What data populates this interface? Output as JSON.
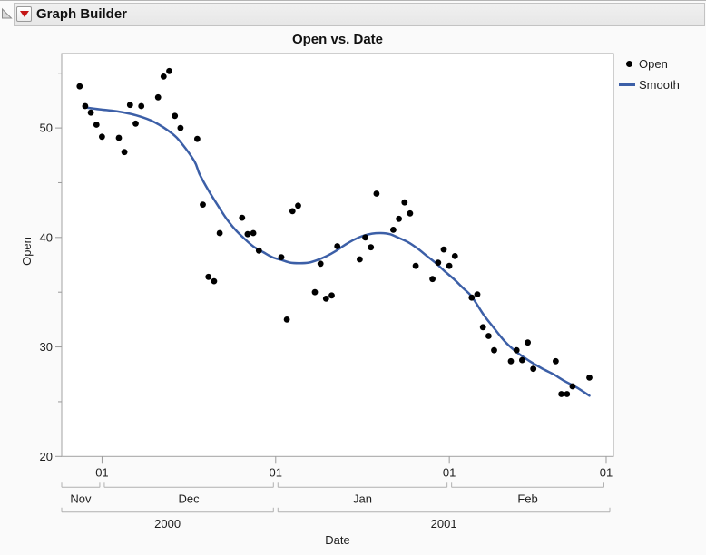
{
  "window": {
    "title": "Graph Builder"
  },
  "colors": {
    "smooth_line": "#3c5fa7",
    "point": "#000000",
    "red_triangle": "#c41414",
    "axis_gray": "#9a9a9a",
    "bracket_gray": "#b0b0b0",
    "frame_gray": "#a3a3a3"
  },
  "chart": {
    "title": "Open vs. Date",
    "x_axis": {
      "label": "Date",
      "type": "date",
      "min": "2000-11-24",
      "max": "2001-03-02",
      "day_ticks": [
        {
          "label": "01",
          "date": "2000-12-01"
        },
        {
          "label": "01",
          "date": "2001-01-01"
        },
        {
          "label": "01",
          "date": "2001-02-01"
        },
        {
          "label": "01",
          "date": "2001-03-01"
        }
      ],
      "month_spans": [
        {
          "label": "Nov",
          "start": "2000-11-24",
          "end": "2000-12-01"
        },
        {
          "label": "Dec",
          "start": "2000-12-01",
          "end": "2001-01-01"
        },
        {
          "label": "Jan",
          "start": "2001-01-01",
          "end": "2001-02-01"
        },
        {
          "label": "Feb",
          "start": "2001-02-01",
          "end": "2001-03-01"
        }
      ],
      "year_spans": [
        {
          "label": "2000",
          "start": "2000-11-24",
          "end": "2001-01-01"
        },
        {
          "label": "2001",
          "start": "2001-01-01",
          "end": "2001-03-02"
        }
      ]
    },
    "y_axis": {
      "label": "Open",
      "min": 20,
      "max": 56.8,
      "tick_values": [
        50,
        40,
        30,
        20
      ],
      "minor_tick_values": [
        55,
        45,
        35,
        25
      ]
    },
    "legend": [
      {
        "label": "Open",
        "marker": "dot",
        "color": "#000000"
      },
      {
        "label": "Smooth",
        "marker": "line",
        "color": "#3c5fa7"
      }
    ]
  },
  "chart_data": {
    "type": "scatter",
    "title": "Open vs. Date",
    "xlabel": "Date",
    "ylabel": "Open",
    "ylim": [
      20,
      56.8
    ],
    "grid": false,
    "legend_position": "top-right",
    "series": [
      {
        "name": "Open",
        "type": "scatter",
        "color": "#000000",
        "dates": [
          "2000-11-27",
          "2000-11-28",
          "2000-11-29",
          "2000-11-30",
          "2000-12-01",
          "2000-12-04",
          "2000-12-05",
          "2000-12-06",
          "2000-12-07",
          "2000-12-08",
          "2000-12-11",
          "2000-12-12",
          "2000-12-13",
          "2000-12-14",
          "2000-12-15",
          "2000-12-18",
          "2000-12-19",
          "2000-12-20",
          "2000-12-21",
          "2000-12-22",
          "2000-12-26",
          "2000-12-27",
          "2000-12-28",
          "2000-12-29",
          "2001-01-02",
          "2001-01-03",
          "2001-01-04",
          "2001-01-05",
          "2001-01-08",
          "2001-01-09",
          "2001-01-10",
          "2001-01-11",
          "2001-01-12",
          "2001-01-16",
          "2001-01-17",
          "2001-01-18",
          "2001-01-19",
          "2001-01-22",
          "2001-01-23",
          "2001-01-24",
          "2001-01-25",
          "2001-01-26",
          "2001-01-29",
          "2001-01-30",
          "2001-01-31",
          "2001-02-01",
          "2001-02-02",
          "2001-02-05",
          "2001-02-06",
          "2001-02-07",
          "2001-02-08",
          "2001-02-09",
          "2001-02-12",
          "2001-02-13",
          "2001-02-14",
          "2001-02-15",
          "2001-02-16",
          "2001-02-20",
          "2001-02-21",
          "2001-02-22",
          "2001-02-23",
          "2001-02-26"
        ],
        "values": [
          53.8,
          52.0,
          51.4,
          50.3,
          49.2,
          49.1,
          47.8,
          52.1,
          50.4,
          52.0,
          52.8,
          54.7,
          55.2,
          51.1,
          50.0,
          49.0,
          43.0,
          36.4,
          36.0,
          40.4,
          41.8,
          40.3,
          40.4,
          38.8,
          38.2,
          32.5,
          42.4,
          42.9,
          35.0,
          37.6,
          34.4,
          34.7,
          39.2,
          38.0,
          40.0,
          39.1,
          44.0,
          40.7,
          41.7,
          43.2,
          42.2,
          37.4,
          36.2,
          37.7,
          38.9,
          37.4,
          38.3,
          34.5,
          34.8,
          31.8,
          31.0,
          29.7,
          28.7,
          29.7,
          28.8,
          30.4,
          28.0,
          28.7,
          25.7,
          25.7,
          26.4,
          27.2
        ]
      },
      {
        "name": "Smooth",
        "type": "line",
        "color": "#3c5fa7",
        "x_days_from_2000_12_01": [
          -3.3,
          -0.4,
          2.9,
          6.1,
          9.3,
          12.6,
          14.2,
          16.5,
          17.4,
          19.0,
          20.7,
          22.3,
          23.9,
          25.5,
          27.1,
          28.8,
          30.4,
          32.0,
          33.6,
          35.2,
          36.9,
          38.5,
          40.1,
          41.7,
          43.3,
          45.0,
          46.6,
          48.2,
          49.8,
          51.4,
          53.0,
          54.7,
          56.3,
          57.9,
          59.5,
          61.1,
          62.8,
          64.4,
          66.0,
          68.1,
          69.7,
          72.0,
          74.1,
          76.2,
          78.5,
          80.6,
          82.7,
          84.9,
          87.0
        ],
        "values": [
          51.9,
          51.7,
          51.5,
          51.15,
          50.55,
          49.45,
          48.6,
          46.95,
          45.8,
          44.3,
          42.9,
          41.65,
          40.65,
          39.85,
          39.15,
          38.65,
          38.2,
          37.95,
          37.7,
          37.65,
          37.7,
          37.95,
          38.3,
          38.75,
          39.3,
          39.8,
          40.15,
          40.35,
          40.4,
          40.3,
          39.95,
          39.55,
          39.0,
          38.35,
          37.7,
          36.95,
          36.2,
          35.4,
          34.6,
          32.95,
          31.9,
          30.45,
          29.5,
          28.75,
          28.05,
          27.5,
          26.85,
          26.25,
          25.55
        ]
      }
    ]
  }
}
